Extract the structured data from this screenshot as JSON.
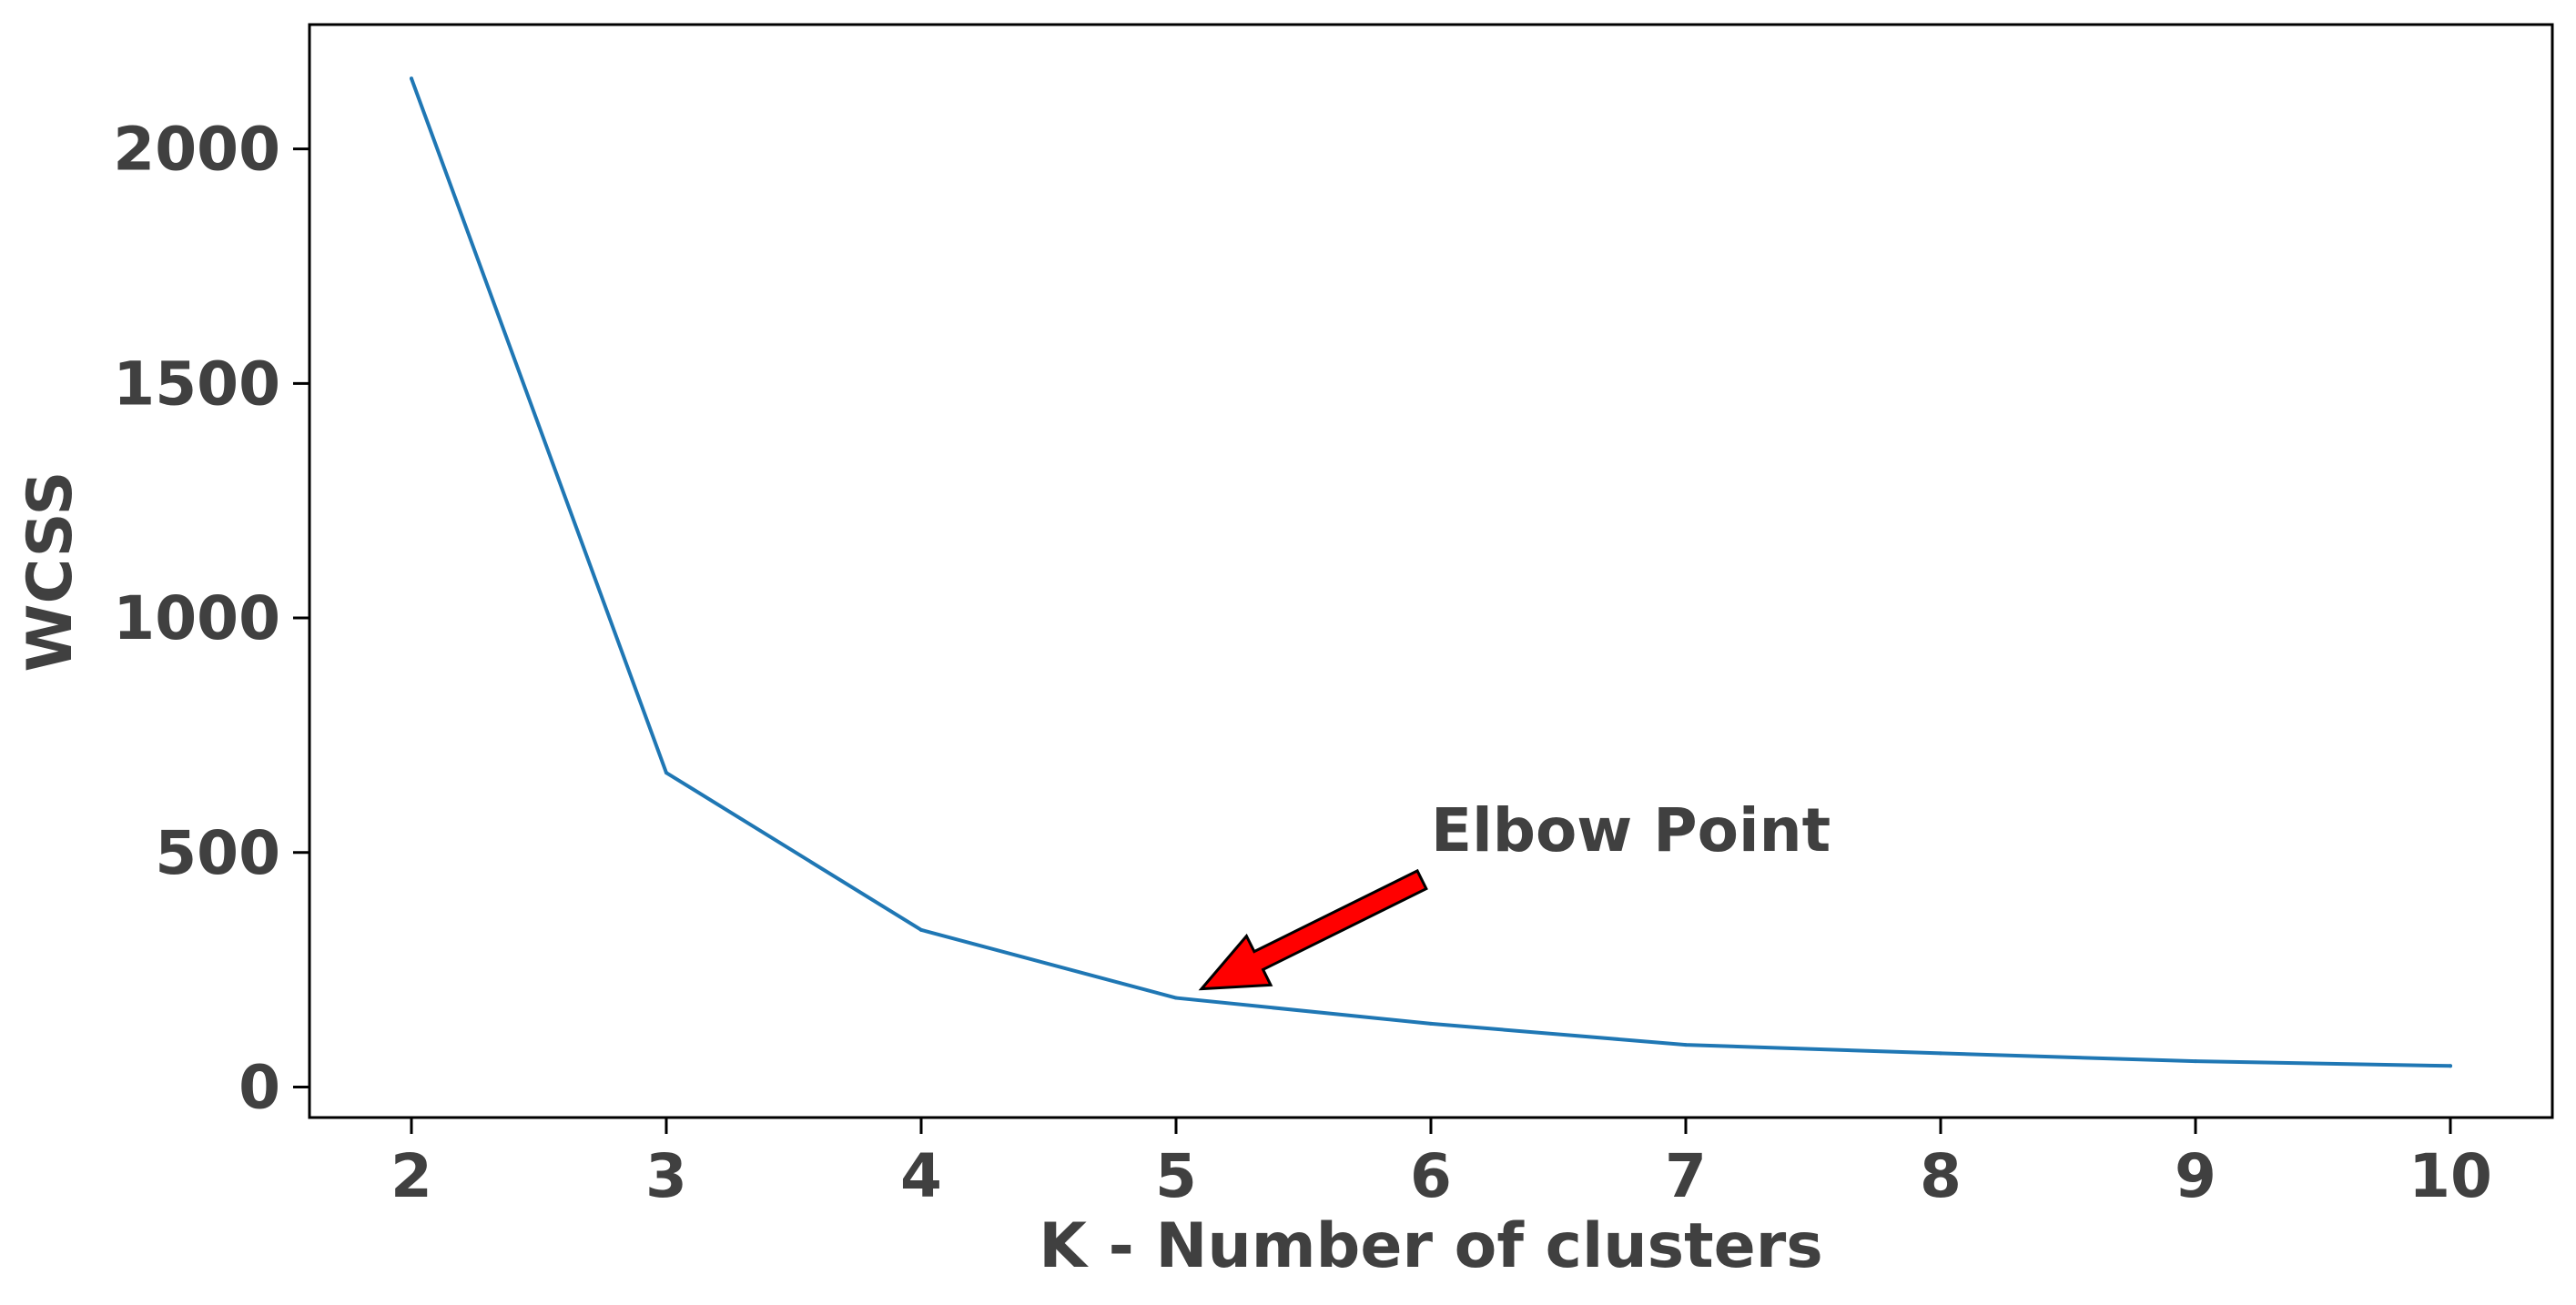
{
  "chart_data": {
    "type": "line",
    "title": "",
    "xlabel": "K - Number of clusters",
    "ylabel": "WCSS",
    "x": [
      2,
      3,
      4,
      5,
      6,
      7,
      8,
      9,
      10
    ],
    "series": [
      {
        "values": [
          2150,
          670,
          335,
          190,
          135,
          90,
          72,
          55,
          45
        ],
        "color": "#1f77b4"
      }
    ],
    "xlim": [
      1.6,
      10.4
    ],
    "ylim": [
      -65,
      2265
    ],
    "xticks": [
      2,
      3,
      4,
      5,
      6,
      7,
      8,
      9,
      10
    ],
    "yticks": [
      0,
      500,
      1000,
      1500,
      2000
    ],
    "grid": false,
    "annotations": [
      {
        "text": "Elbow Point",
        "point": {
          "x": 5,
          "y": 190
        },
        "label_at": {
          "x": 6,
          "y": 500
        },
        "arrow_color": "#ff0000"
      }
    ]
  }
}
